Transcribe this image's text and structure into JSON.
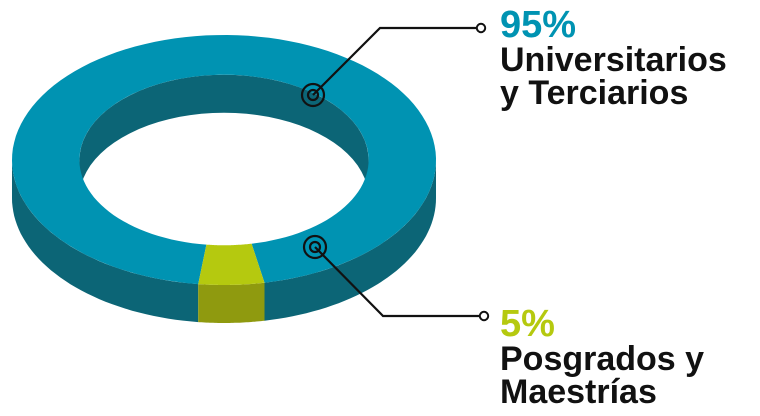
{
  "chart_data": {
    "type": "pie",
    "style": "3d-donut",
    "legend": "right",
    "series": [
      {
        "value": 95,
        "value_label": "95%",
        "name_lines": [
          "Universitarios",
          "y Terciarios"
        ],
        "color": "#0093B2",
        "side_color": "#0C6576"
      },
      {
        "value": 5,
        "value_label": "5%",
        "name_lines": [
          "Posgrados y",
          "Maestrías"
        ],
        "color": "#B5C90F",
        "side_color": "#8F9A0F"
      }
    ]
  }
}
